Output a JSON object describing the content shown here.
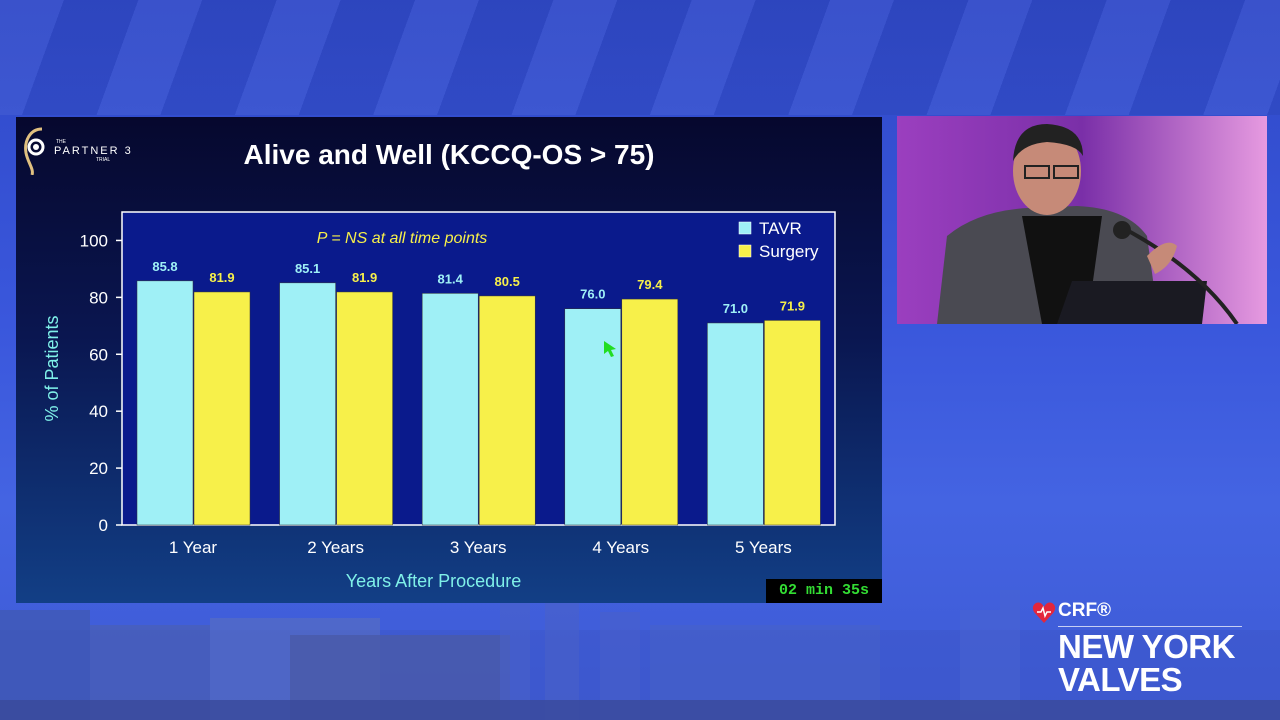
{
  "slide": {
    "title": "Alive and Well (KCCQ-OS > 75)",
    "logo_text": "PARTNER 3",
    "logo_small_top": "THE",
    "logo_small_bottom": "TRIAL"
  },
  "chart_data": {
    "type": "bar",
    "title": "Alive and Well (KCCQ-OS > 75)",
    "annotation": "P = NS at all time points",
    "categories": [
      "1 Year",
      "2 Years",
      "3 Years",
      "4 Years",
      "5 Years"
    ],
    "series": [
      {
        "name": "TAVR",
        "color": "#9ff0f6",
        "values": [
          85.8,
          85.1,
          81.4,
          76.0,
          71.0
        ],
        "labels": [
          "85.8",
          "85.1",
          "81.4",
          "76.0",
          "71.0"
        ]
      },
      {
        "name": "Surgery",
        "color": "#f7f04a",
        "values": [
          81.9,
          81.9,
          80.5,
          79.4,
          71.9
        ],
        "labels": [
          "81.9",
          "81.9",
          "80.5",
          "79.4",
          "71.9"
        ]
      }
    ],
    "xlabel": "Years After Procedure",
    "ylabel": "% of Patients",
    "ylim": [
      0,
      110
    ],
    "yticks": [
      "0",
      "20",
      "40",
      "60",
      "80",
      "100"
    ],
    "legend_position": "top-right",
    "grid": false,
    "plot_background": "#0a1a8c"
  },
  "timer": "02 min 35s",
  "brand": {
    "crf": "CRF®",
    "line1": "NEW YORK",
    "line2": "VALVES"
  }
}
